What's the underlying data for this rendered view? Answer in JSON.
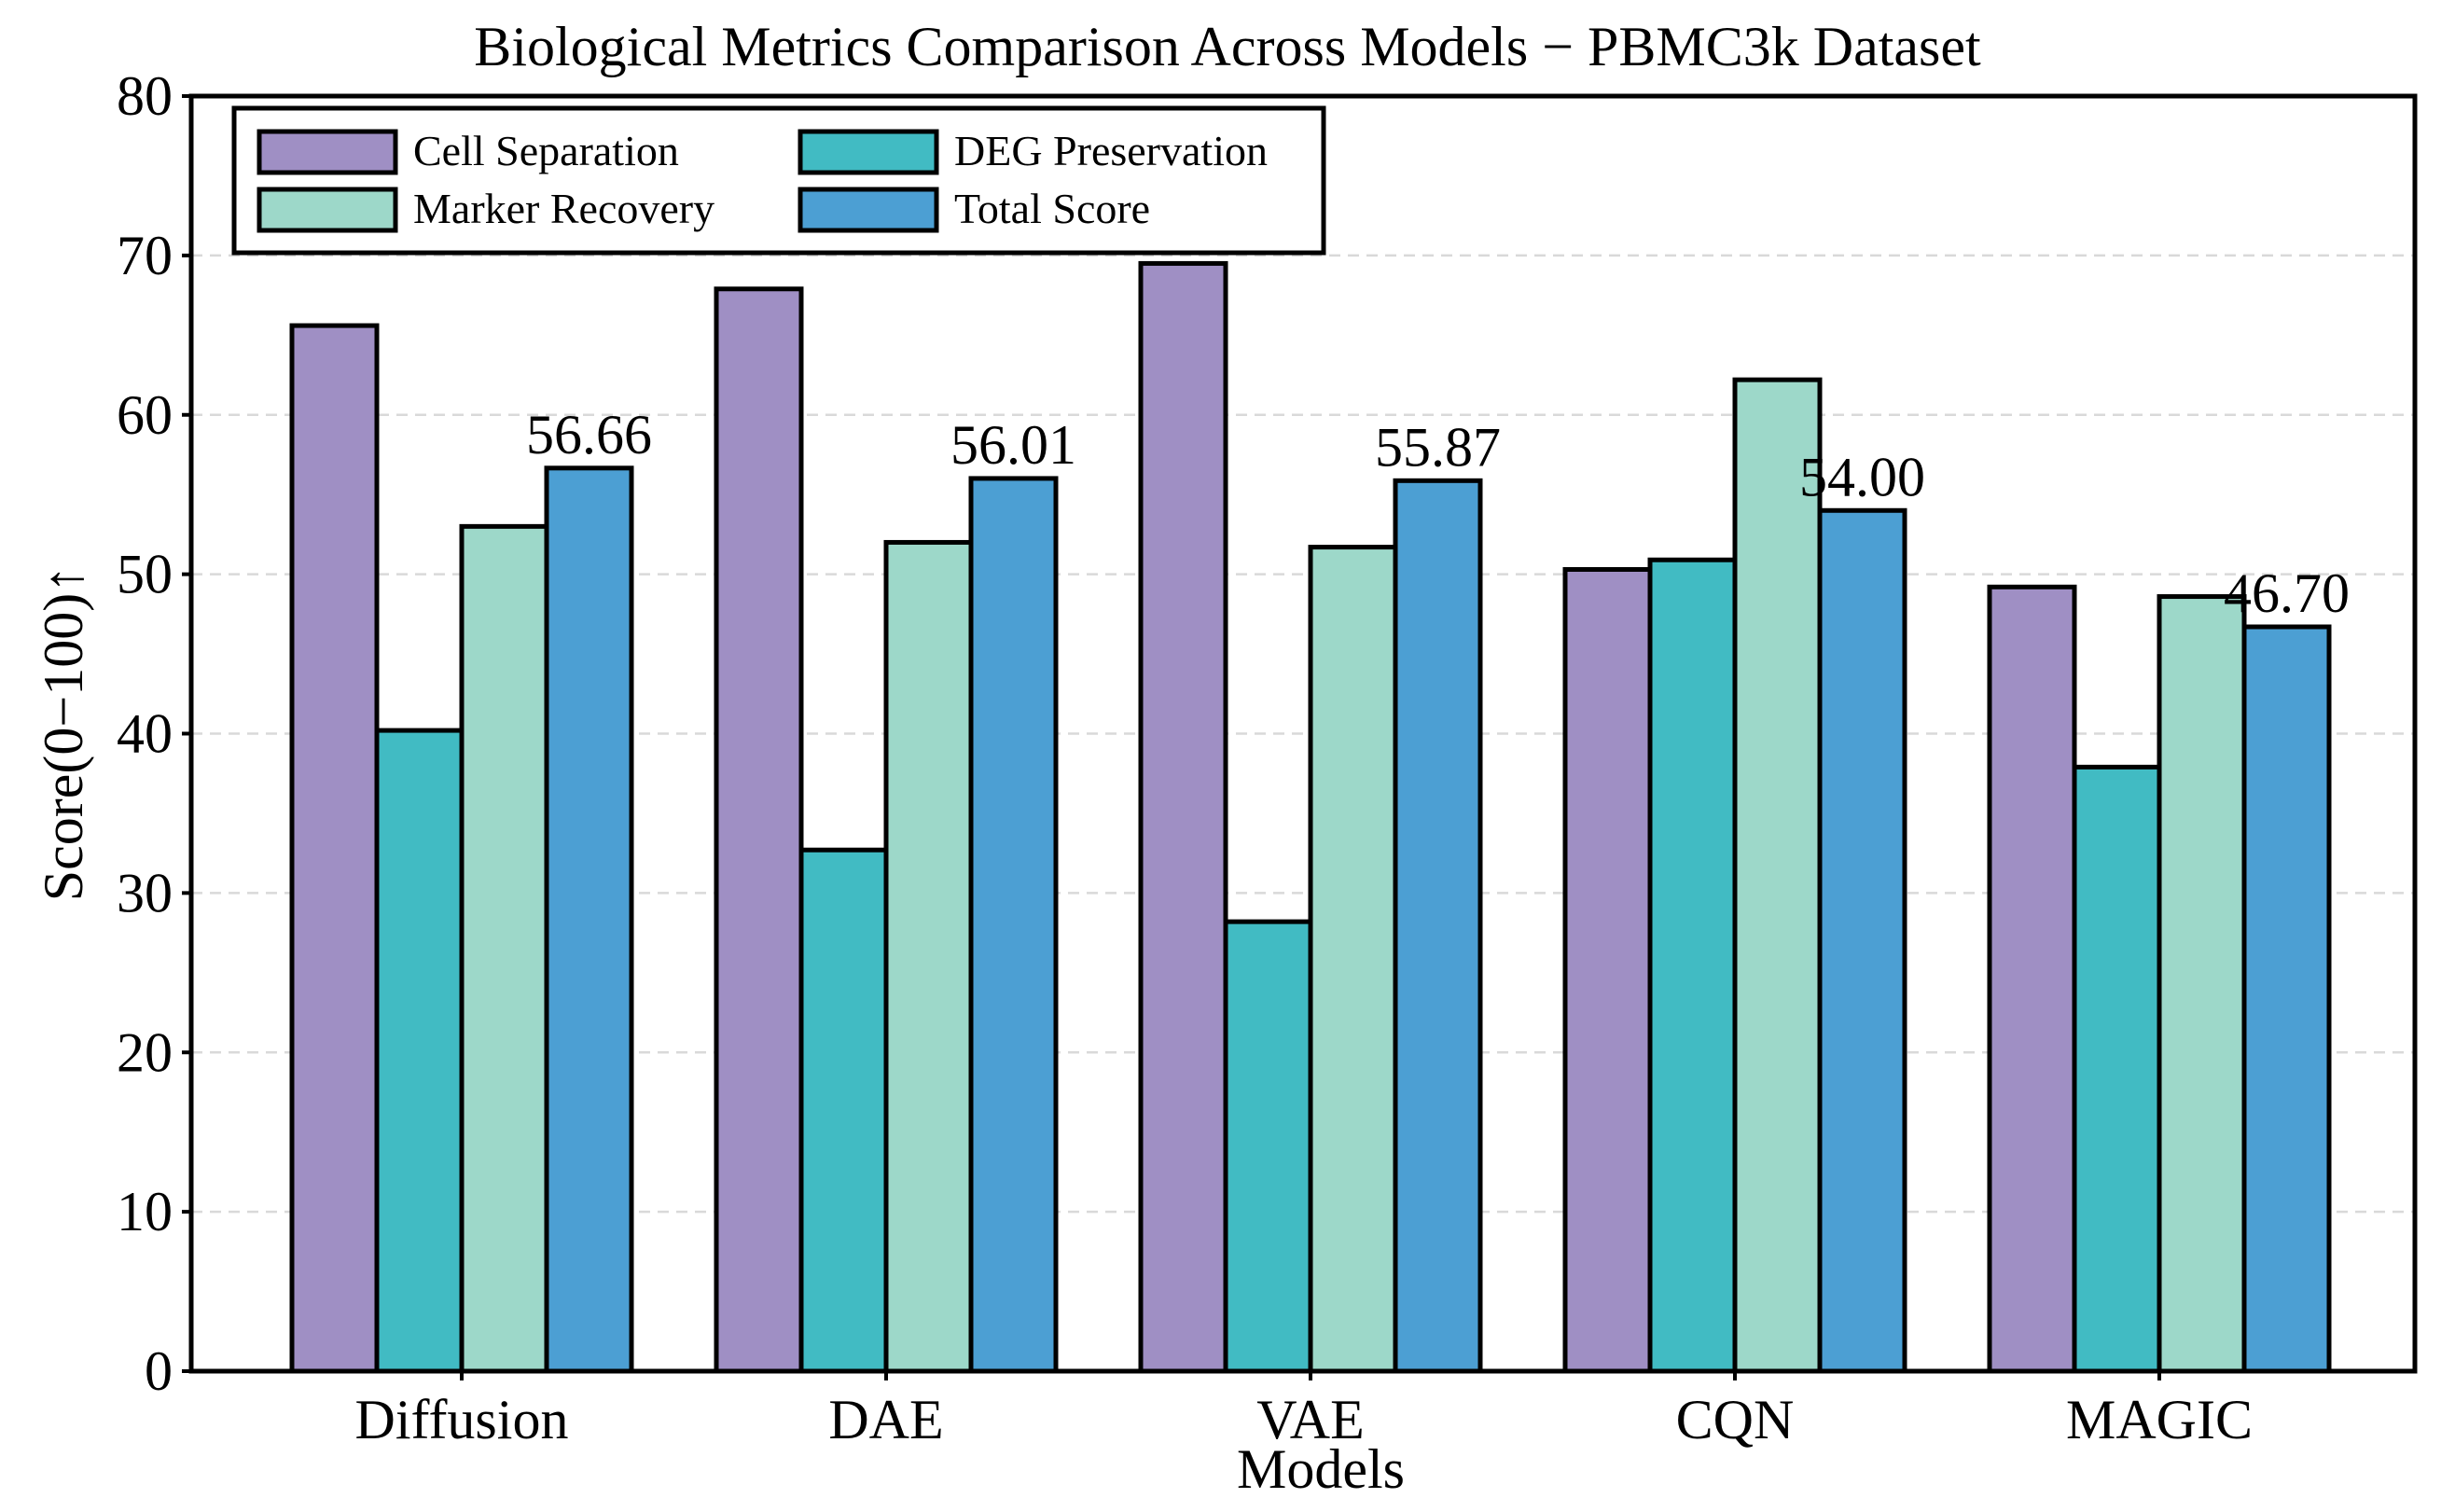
{
  "chart_data": {
    "type": "bar",
    "title": "Biological Metrics Comparison Across Models − PBMC3k Dataset",
    "xlabel": "Models",
    "ylabel": "Score(0−100)↑",
    "ylim": [
      0,
      80
    ],
    "yticks": [
      0,
      10,
      20,
      30,
      40,
      50,
      60,
      70,
      80
    ],
    "grid": true,
    "legend_position": "top-left",
    "categories": [
      "Diffusion",
      "DAE",
      "VAE",
      "CQN",
      "MAGIC"
    ],
    "series": [
      {
        "name": "Cell Separation",
        "color": "#9f8fc4",
        "values": [
          65.6,
          67.9,
          69.5,
          50.3,
          49.2
        ]
      },
      {
        "name": "DEG Preservation",
        "color": "#41bbc3",
        "values": [
          40.2,
          32.7,
          28.2,
          50.9,
          37.9
        ]
      },
      {
        "name": "Marker Recovery",
        "color": "#9dd8c9",
        "values": [
          53.0,
          52.0,
          51.7,
          62.2,
          48.6
        ]
      },
      {
        "name": "Total Score",
        "color": "#4c9fd3",
        "values": [
          56.66,
          56.01,
          55.87,
          54.0,
          46.7
        ]
      }
    ],
    "value_labels": [
      "56.66",
      "56.01",
      "55.87",
      "54.00",
      "46.70"
    ]
  }
}
